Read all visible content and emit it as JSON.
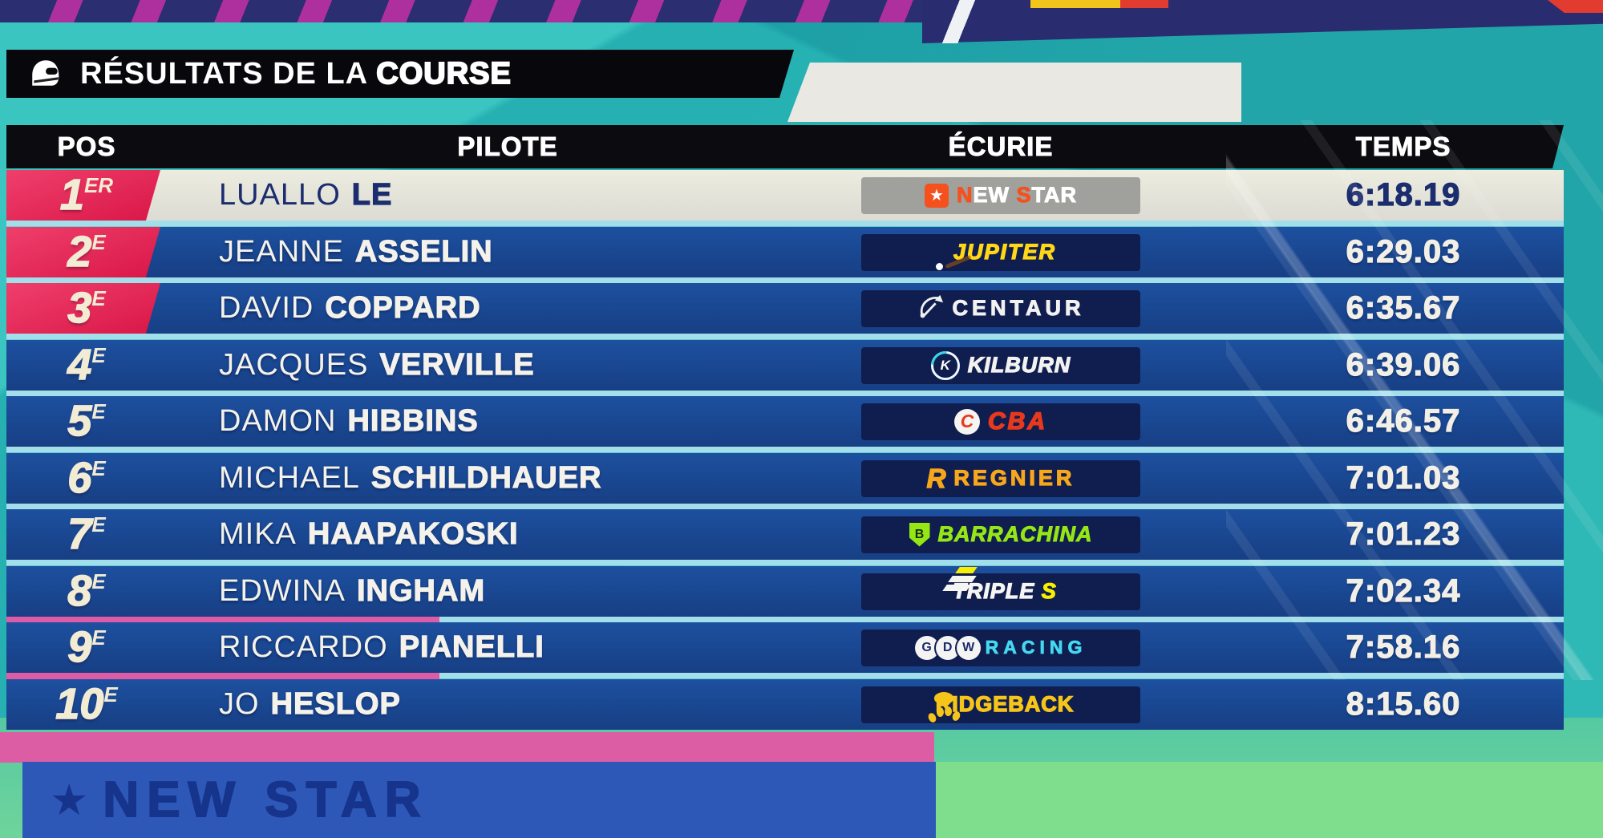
{
  "header": {
    "title_prefix": "RÉSULTATS DE LA ",
    "title_bold": "COURSE"
  },
  "table": {
    "columns": [
      {
        "id": "pos",
        "label": "POS"
      },
      {
        "id": "pilote",
        "label": "PILOTE"
      },
      {
        "id": "ecurie",
        "label": "ÉCURIE"
      },
      {
        "id": "temps",
        "label": "TEMPS"
      }
    ],
    "rows": [
      {
        "pos": "1",
        "ordinal": "ER",
        "first": "LUALLO",
        "last": "LE",
        "time": "6:18.19",
        "highlight": true,
        "badge": true,
        "team": {
          "id": "newstar",
          "name": "NEW STAR",
          "icon": "star-icon",
          "icon_text": "★",
          "badge_bg": "#a0a09c",
          "segments": [
            {
              "t": "N",
              "c": "#f4511e"
            },
            {
              "t": "EW ",
              "c": "#ffffff"
            },
            {
              "t": "S",
              "c": "#f4511e"
            },
            {
              "t": "TAR",
              "c": "#ffffff"
            }
          ]
        }
      },
      {
        "pos": "2",
        "ordinal": "E",
        "first": "JEANNE",
        "last": "ASSELIN",
        "time": "6:29.03",
        "highlight": false,
        "badge": true,
        "team": {
          "id": "jupiter",
          "name": "JUPITER",
          "icon": "planet-icon",
          "badge_bg": "#101d4f",
          "text_color": "#ffd717"
        }
      },
      {
        "pos": "3",
        "ordinal": "E",
        "first": "DAVID",
        "last": "COPPARD",
        "time": "6:35.67",
        "highlight": false,
        "badge": true,
        "team": {
          "id": "centaur",
          "name": "CENTAUR",
          "icon": "bow-arrow-icon",
          "badge_bg": "#101d4f",
          "text_color": "#f2f2f0"
        }
      },
      {
        "pos": "4",
        "ordinal": "E",
        "first": "JACQUES",
        "last": "VERVILLE",
        "time": "6:39.06",
        "highlight": false,
        "badge": false,
        "team": {
          "id": "kilburn",
          "name": "KILBURN",
          "icon": "k-ring-icon",
          "icon_text": "K",
          "badge_bg": "#101d4f",
          "text_color": "#f2f2f0"
        }
      },
      {
        "pos": "5",
        "ordinal": "E",
        "first": "DAMON",
        "last": "HIBBINS",
        "time": "6:46.57",
        "highlight": false,
        "badge": false,
        "team": {
          "id": "cba",
          "name": "CBA",
          "icon": "c-swoosh-icon",
          "icon_text": "C",
          "badge_bg": "#101d4f",
          "text_color": "#e8391d"
        }
      },
      {
        "pos": "6",
        "ordinal": "E",
        "first": "MICHAEL",
        "last": "SCHILDHAUER",
        "time": "7:01.03",
        "highlight": false,
        "badge": false,
        "team": {
          "id": "regnier",
          "name": "REGNIER",
          "icon": "r-mono-icon",
          "icon_text": "R",
          "badge_bg": "#101d4f",
          "text_color": "#f7a71b"
        }
      },
      {
        "pos": "7",
        "ordinal": "E",
        "first": "MIKA",
        "last": "HAAPAKOSKI",
        "time": "7:01.23",
        "highlight": false,
        "badge": false,
        "team": {
          "id": "barrachina",
          "name": "BARRACHINA",
          "icon": "shield-b-icon",
          "icon_text": "B",
          "badge_bg": "#101d4f",
          "text_color": "#94e615"
        }
      },
      {
        "pos": "8",
        "ordinal": "E",
        "first": "EDWINA",
        "last": "INGHAM",
        "time": "7:02.34",
        "highlight": false,
        "badge": false,
        "team": {
          "id": "triples",
          "name": "TRIPLE S",
          "icon": "stripes-icon",
          "badge_bg": "#101d4f",
          "segments": [
            {
              "t": "TRIPLE ",
              "c": "#f5f5f2"
            },
            {
              "t": "S",
              "c": "#f8ef00"
            }
          ]
        }
      },
      {
        "pos": "9",
        "ordinal": "E",
        "first": "RICCARDO",
        "last": "PIANELLI",
        "time": "7:58.16",
        "highlight": false,
        "badge": false,
        "team": {
          "id": "gdw",
          "name": "GDW RACING",
          "icon": "gdw-circles-icon",
          "icon_letters": [
            "G",
            "D",
            "W"
          ],
          "badge_bg": "#101d4f",
          "segments": [
            {
              "t": "RACING",
              "c": "#45d8f0"
            }
          ]
        }
      },
      {
        "pos": "10",
        "ordinal": "E",
        "first": "JO",
        "last": "HESLOP",
        "time": "8:15.60",
        "highlight": false,
        "badge": false,
        "team": {
          "id": "ridgeback",
          "name": "RIDGEBACK",
          "icon": "paw-icon",
          "badge_bg": "#101d4f",
          "text_color": "#f6c51a"
        }
      }
    ]
  },
  "background": {
    "billboard_star": "★",
    "billboard_text": "NEW STAR"
  },
  "colors": {
    "accent_pink": "#e8335f",
    "row_blue": "#1d509f",
    "highlight_row": "#e9e8e1",
    "navy_text": "#1b2d6e",
    "cream_number": "#f3ecd4",
    "separator_cyan": "#a3dfea",
    "header_black": "#0b0b10",
    "scene_teal": "#2fb9b6"
  }
}
